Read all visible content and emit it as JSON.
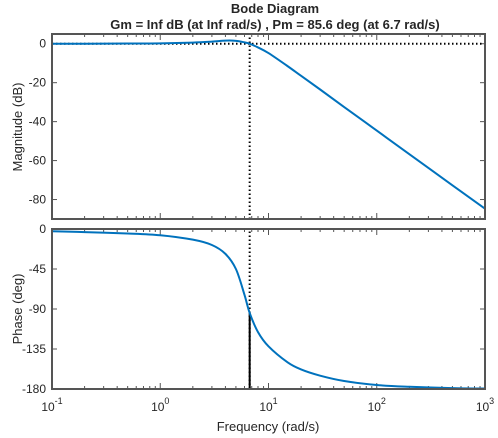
{
  "chart_data": [
    {
      "type": "line",
      "title": "Bode Diagram",
      "subtitle": "Gm = Inf dB (at Inf rad/s) ,  Pm = 85.6 deg (at 6.7 rad/s)",
      "ylabel": "Magnitude (dB)",
      "xscale": "log",
      "xlim": [
        0.1,
        1000
      ],
      "ylim": [
        -90,
        5
      ],
      "yticks": [
        "0",
        "-20",
        "-40",
        "-60",
        "-80"
      ],
      "series": [
        {
          "x": [
            0.1,
            0.2,
            0.5,
            1,
            2,
            3,
            4,
            5,
            6,
            6.7,
            8,
            10,
            15,
            20,
            30,
            50,
            100,
            200,
            500,
            1000
          ],
          "values": [
            0,
            0,
            0.1,
            0.2,
            0.6,
            1.1,
            1.6,
            1.5,
            0.7,
            0,
            -1.9,
            -4.8,
            -11.5,
            -16.5,
            -23.5,
            -32.5,
            -44.6,
            -56.7,
            -72.7,
            -84.7
          ]
        }
      ],
      "reference_lines": [
        {
          "orientation": "horizontal",
          "y": 0,
          "style": "dotted"
        },
        {
          "orientation": "vertical",
          "x": 6.7,
          "style": "dotted"
        }
      ],
      "color": "#0072BD"
    },
    {
      "type": "line",
      "ylabel": "Phase (deg)",
      "xlabel": "Frequency  (rad/s)",
      "xscale": "log",
      "xlim": [
        0.1,
        1000
      ],
      "ylim": [
        -180,
        0
      ],
      "yticks": [
        "0",
        "-45",
        "-90",
        "-135",
        "-180"
      ],
      "xticks": [
        {
          "base": "10",
          "exp": "-1",
          "value": 0.1
        },
        {
          "base": "10",
          "exp": "0",
          "value": 1
        },
        {
          "base": "10",
          "exp": "1",
          "value": 10
        },
        {
          "base": "10",
          "exp": "2",
          "value": 100
        },
        {
          "base": "10",
          "exp": "3",
          "value": 1000
        }
      ],
      "series": [
        {
          "x": [
            0.1,
            0.2,
            0.5,
            1,
            2,
            3,
            4,
            5,
            6,
            6.7,
            8,
            10,
            15,
            20,
            30,
            50,
            100,
            200,
            500,
            1000
          ],
          "values": [
            -2.5,
            -3.5,
            -5,
            -7,
            -12,
            -18,
            -28,
            -45,
            -74,
            -94.4,
            -116,
            -132,
            -150,
            -158,
            -165,
            -171,
            -175.5,
            -177.5,
            -179,
            -179.5
          ]
        }
      ],
      "reference_lines": [
        {
          "orientation": "horizontal",
          "y": -180,
          "style": "dotted"
        },
        {
          "orientation": "vertical",
          "x": 6.7,
          "style": "dotted"
        },
        {
          "orientation": "vertical",
          "x": 6.7,
          "from": -180,
          "to": -94.4,
          "style": "solid"
        }
      ],
      "color": "#0072BD"
    }
  ]
}
